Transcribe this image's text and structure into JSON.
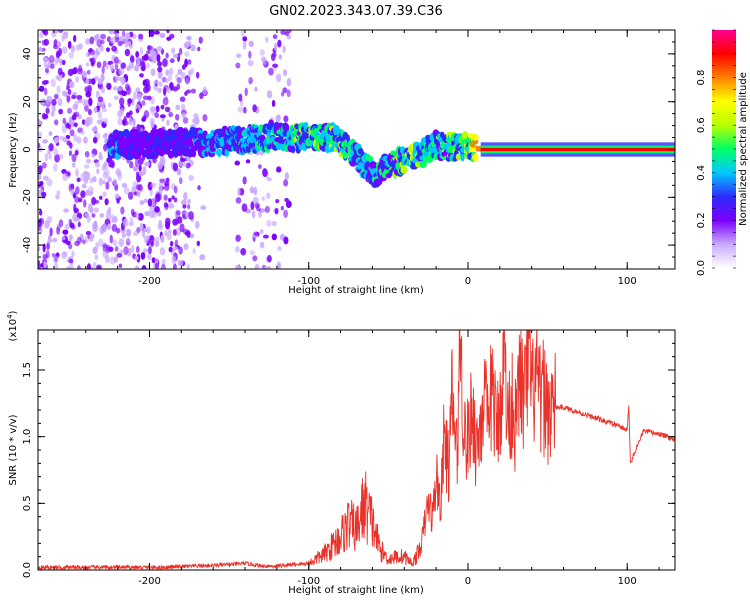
{
  "figure_title": "GN02.2023.343.07.39.C36",
  "colors": {
    "snr_line": "#e8322a",
    "colormap": [
      "#ffffff",
      "#c9a8ff",
      "#7b00ff",
      "#2b2bff",
      "#00c8ff",
      "#00ff66",
      "#b8ff00",
      "#ffff00",
      "#ff8000",
      "#ff0000",
      "#ff0090"
    ]
  },
  "chart_data": [
    {
      "type": "heatmap",
      "xlabel": "Height of straight line (km)",
      "ylabel": "Frequency (Hz)",
      "xlim": [
        -270,
        130
      ],
      "ylim": [
        -50,
        50
      ],
      "x_ticks": [
        -200,
        -100,
        0,
        100
      ],
      "x_tick_labels": [
        "-200",
        "-100",
        "0",
        "100"
      ],
      "y_ticks": [
        -40,
        -20,
        0,
        20,
        40
      ],
      "y_tick_labels": [
        "-40",
        "-20",
        "0",
        "20",
        "40"
      ],
      "colorbar": {
        "label": "Normalized spectral amplitude",
        "range": [
          0,
          1
        ],
        "ticks": [
          0.0,
          0.2,
          0.4,
          0.6,
          0.8
        ],
        "tick_labels": [
          "0.0",
          "0.2",
          "0.4",
          "0.6",
          "0.8"
        ]
      },
      "ridge": [
        {
          "x": -225,
          "f": 2,
          "amp": 0.35
        },
        {
          "x": -200,
          "f": 2,
          "amp": 0.3
        },
        {
          "x": -180,
          "f": 3,
          "amp": 0.3
        },
        {
          "x": -160,
          "f": 3,
          "amp": 0.4
        },
        {
          "x": -140,
          "f": 4,
          "amp": 0.45
        },
        {
          "x": -120,
          "f": 5,
          "amp": 0.5
        },
        {
          "x": -100,
          "f": 5,
          "amp": 0.55
        },
        {
          "x": -85,
          "f": 5,
          "amp": 0.55
        },
        {
          "x": -75,
          "f": 0,
          "amp": 0.5
        },
        {
          "x": -65,
          "f": -6,
          "amp": 0.45
        },
        {
          "x": -58,
          "f": -10,
          "amp": 0.45
        },
        {
          "x": -50,
          "f": -6,
          "amp": 0.5
        },
        {
          "x": -40,
          "f": -5,
          "amp": 0.6
        },
        {
          "x": -30,
          "f": -2,
          "amp": 0.6
        },
        {
          "x": -20,
          "f": 2,
          "amp": 0.55
        },
        {
          "x": -10,
          "f": 1,
          "amp": 0.55
        },
        {
          "x": 0,
          "f": 1,
          "amp": 0.6
        },
        {
          "x": 10,
          "f": 0,
          "amp": 0.9
        },
        {
          "x": 40,
          "f": 0,
          "amp": 0.9
        },
        {
          "x": 80,
          "f": 0,
          "amp": 0.9
        },
        {
          "x": 130,
          "f": 0,
          "amp": 0.9
        }
      ]
    },
    {
      "type": "line",
      "xlabel": "Height of straight line (km)",
      "ylabel": "SNR (10 * v/v)",
      "y_multiplier": "(x10",
      "y_multiplier_exp": "4",
      "y_multiplier_close": ")",
      "xlim": [
        -270,
        130
      ],
      "ylim": [
        0,
        1.8
      ],
      "x_ticks": [
        -200,
        -100,
        0,
        100
      ],
      "x_tick_labels": [
        "-200",
        "-100",
        "0",
        "100"
      ],
      "y_ticks": [
        0,
        0.5,
        1.0,
        1.5
      ],
      "y_tick_labels": [
        "0.0",
        "0.5",
        "1.0",
        "1.5"
      ],
      "series": [
        {
          "x": [
            -270,
            -250,
            -230,
            -210,
            -190,
            -170,
            -150,
            -140,
            -130,
            -120,
            -110,
            -100,
            -90,
            -80,
            -75,
            -70,
            -65,
            -60,
            -55,
            -50,
            -45,
            -40,
            -35,
            -30,
            -25,
            -22,
            -20,
            -17,
            -15,
            -12,
            -10,
            -7,
            -5,
            -2,
            0,
            3,
            5,
            8,
            10,
            13,
            15,
            18,
            20,
            23,
            25,
            28,
            30,
            33,
            35,
            38,
            40,
            43,
            45,
            48,
            50,
            55,
            60,
            70,
            80,
            90,
            100,
            101,
            102,
            110,
            120,
            130
          ],
          "y": [
            0.02,
            0.02,
            0.02,
            0.02,
            0.02,
            0.03,
            0.04,
            0.05,
            0.03,
            0.03,
            0.04,
            0.05,
            0.12,
            0.25,
            0.35,
            0.3,
            0.5,
            0.35,
            0.15,
            0.08,
            0.1,
            0.1,
            0.05,
            0.15,
            0.5,
            0.4,
            0.7,
            0.5,
            1.0,
            0.75,
            1.3,
            0.85,
            1.75,
            1.0,
            0.95,
            1.25,
            0.9,
            1.1,
            1.35,
            0.95,
            1.45,
            1.0,
            1.25,
            1.6,
            1.1,
            1.3,
            1.05,
            1.5,
            1.2,
            1.6,
            1.3,
            1.45,
            1.25,
            1.3,
            1.2,
            1.22,
            1.22,
            1.18,
            1.14,
            1.1,
            1.05,
            1.25,
            0.8,
            1.04,
            1.02,
            0.98
          ]
        }
      ]
    }
  ]
}
